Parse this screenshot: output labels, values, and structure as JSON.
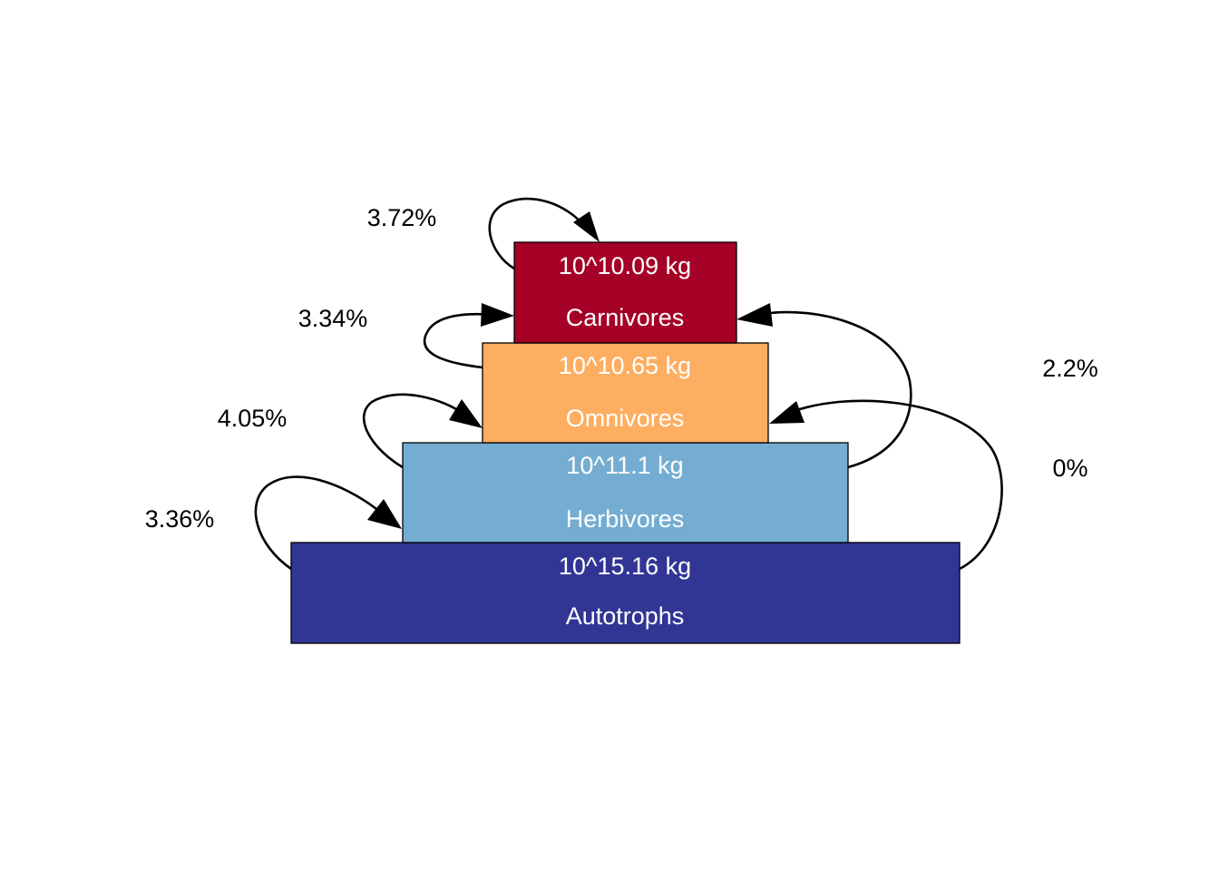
{
  "levels": [
    {
      "name": "Autotrophs",
      "mass": "10^15.16 kg",
      "color": "#313695",
      "text_color": "#ffffff"
    },
    {
      "name": "Herbivores",
      "mass": "10^11.1 kg",
      "color": "#74add1",
      "text_color": "#ffffff"
    },
    {
      "name": "Omnivores",
      "mass": "10^10.65 kg",
      "color": "#fdae61",
      "text_color": "#ffffff"
    },
    {
      "name": "Carnivores",
      "mass": "10^10.09 kg",
      "color": "#a50026",
      "text_color": "#ffffff"
    }
  ],
  "transfers": [
    {
      "from": "Autotrophs",
      "to": "Herbivores",
      "label": "3.36%"
    },
    {
      "from": "Herbivores",
      "to": "Omnivores",
      "label": "4.05%"
    },
    {
      "from": "Omnivores",
      "to": "Carnivores",
      "label": "3.34%"
    },
    {
      "from": "Carnivores",
      "to": "Carnivores",
      "label": "3.72%"
    },
    {
      "from": "Herbivores",
      "to": "Carnivores",
      "label": "2.2%"
    },
    {
      "from": "Autotrophs",
      "to": "Omnivores",
      "label": "0%"
    }
  ]
}
